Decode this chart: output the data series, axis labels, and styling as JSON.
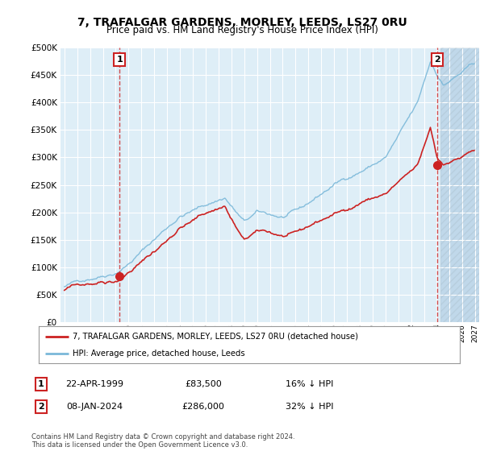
{
  "title": "7, TRAFALGAR GARDENS, MORLEY, LEEDS, LS27 0RU",
  "subtitle": "Price paid vs. HM Land Registry's House Price Index (HPI)",
  "legend_line1": "7, TRAFALGAR GARDENS, MORLEY, LEEDS, LS27 0RU (detached house)",
  "legend_line2": "HPI: Average price, detached house, Leeds",
  "transaction1_label": "1",
  "transaction1_date": "22-APR-1999",
  "transaction1_price": "£83,500",
  "transaction1_hpi": "16% ↓ HPI",
  "transaction2_label": "2",
  "transaction2_date": "08-JAN-2024",
  "transaction2_price": "£286,000",
  "transaction2_hpi": "32% ↓ HPI",
  "copyright": "Contains HM Land Registry data © Crown copyright and database right 2024.\nThis data is licensed under the Open Government Licence v3.0.",
  "hpi_color": "#7ab8d9",
  "price_color": "#cc2222",
  "bg_color": "#deeef7",
  "hatch_color": "#c0d8ea",
  "ylim": [
    0,
    500000
  ],
  "yticks": [
    0,
    50000,
    100000,
    150000,
    200000,
    250000,
    300000,
    350000,
    400000,
    450000,
    500000
  ],
  "start_year": 1995,
  "end_year": 2027,
  "t1": 1999.29,
  "t2": 2024.04,
  "p1_price": 83500,
  "p2_price": 286000
}
